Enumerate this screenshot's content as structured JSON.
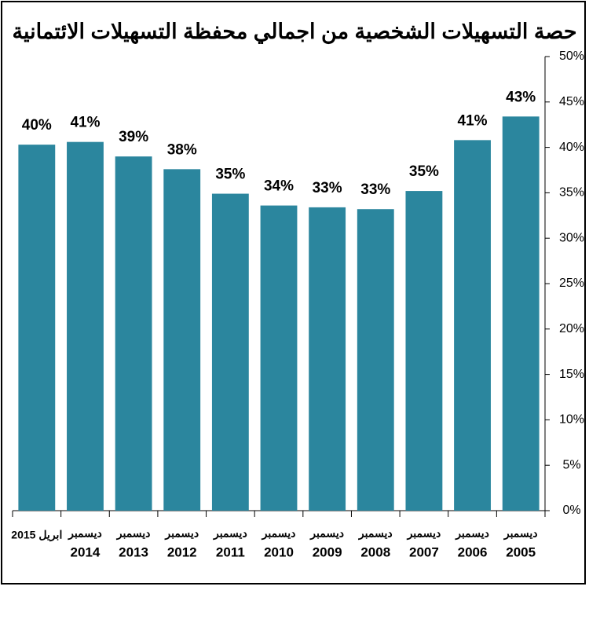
{
  "chart_data": {
    "type": "bar",
    "title": "حصة التسهيلات الشخصية من اجمالي محفظة التسهيلات الائتمانية",
    "categories": [
      [
        "ابريل 2015"
      ],
      [
        "ديسمبر",
        "2014"
      ],
      [
        "ديسمبر",
        "2013"
      ],
      [
        "ديسمبر",
        "2012"
      ],
      [
        "ديسمبر",
        "2011"
      ],
      [
        "ديسمبر",
        "2010"
      ],
      [
        "ديسمبر",
        "2009"
      ],
      [
        "ديسمبر",
        "2008"
      ],
      [
        "ديسمبر",
        "2007"
      ],
      [
        "ديسمبر",
        "2006"
      ],
      [
        "ديسمبر",
        "2005"
      ]
    ],
    "values": [
      40.3,
      40.6,
      39.0,
      37.6,
      34.9,
      33.6,
      33.4,
      33.2,
      35.2,
      40.8,
      43.4
    ],
    "value_labels": [
      "40%",
      "41%",
      "39%",
      "38%",
      "35%",
      "34%",
      "33%",
      "33%",
      "35%",
      "41%",
      "43%"
    ],
    "color": "#2b869e",
    "ylim": [
      0,
      50
    ],
    "yticks": [
      {
        "value": 0,
        "label": "0%"
      },
      {
        "value": 5,
        "label": "5%"
      },
      {
        "value": 10,
        "label": "10%"
      },
      {
        "value": 15,
        "label": "15%"
      },
      {
        "value": 20,
        "label": "20%"
      },
      {
        "value": 25,
        "label": "25%"
      },
      {
        "value": 30,
        "label": "30%"
      },
      {
        "value": 35,
        "label": "35%"
      },
      {
        "value": 40,
        "label": "40%"
      },
      {
        "value": 45,
        "label": "45%"
      },
      {
        "value": 50,
        "label": "50%"
      }
    ],
    "grid": false
  }
}
